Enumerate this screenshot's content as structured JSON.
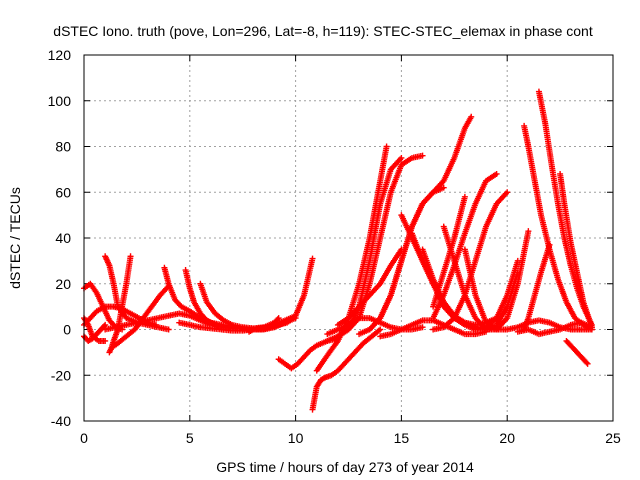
{
  "chart_data": {
    "type": "scatter",
    "title": "dSTEC Iono. truth (pove, Lon=296, Lat=-8, h=119): STEC-STEC_elemax in phase cont",
    "xlabel": "GPS time / hours of day 273 of year 2014",
    "ylabel": "dSTEC  / TECUs",
    "xlim": [
      0,
      25
    ],
    "ylim": [
      -40,
      120
    ],
    "xticks": [
      0,
      5,
      10,
      15,
      20,
      25
    ],
    "yticks": [
      -40,
      -20,
      0,
      20,
      40,
      60,
      80,
      100,
      120
    ],
    "grid": true,
    "marker": "plus",
    "color": "#ff0000",
    "series": [
      {
        "x": [
          0.0,
          0.3,
          0.6,
          0.9,
          1.2,
          1.5,
          1.8
        ],
        "y": [
          18,
          20,
          16,
          10,
          4,
          1,
          0
        ]
      },
      {
        "x": [
          0.0,
          0.3,
          0.6,
          1.0,
          1.4,
          1.8,
          2.2,
          2.6,
          3.0,
          3.4
        ],
        "y": [
          2,
          5,
          8,
          10,
          10,
          9,
          7,
          5,
          3,
          2
        ]
      },
      {
        "x": [
          0.0,
          0.2,
          0.4,
          0.7,
          1.0
        ],
        "y": [
          5,
          2,
          -3,
          -5,
          -5
        ]
      },
      {
        "x": [
          0.0,
          0.2,
          0.4,
          0.6,
          0.8,
          1.0
        ],
        "y": [
          -3,
          -5,
          -4,
          -2,
          0,
          2
        ]
      },
      {
        "x": [
          1.0,
          1.2,
          1.4,
          1.6,
          2.0,
          2.5,
          3.0,
          3.5,
          4.0
        ],
        "y": [
          32,
          28,
          20,
          10,
          5,
          3,
          2,
          1,
          0
        ]
      },
      {
        "x": [
          1.2,
          1.3,
          1.4,
          1.6,
          1.8,
          2.0,
          2.2
        ],
        "y": [
          -10,
          -8,
          -5,
          0,
          10,
          20,
          32
        ]
      },
      {
        "x": [
          1.3,
          1.6,
          2.0,
          2.4,
          2.8,
          3.2,
          3.6,
          4.0
        ],
        "y": [
          -8,
          -6,
          -3,
          0,
          5,
          10,
          15,
          19
        ]
      },
      {
        "x": [
          1.0,
          1.5,
          2.0,
          2.5,
          3.0,
          3.5,
          4.0,
          4.5,
          5.0,
          5.5,
          6.0
        ],
        "y": [
          0,
          1,
          2,
          3,
          4,
          5,
          6,
          7,
          6,
          4,
          2
        ]
      },
      {
        "x": [
          3.8,
          4.0,
          4.3,
          4.6,
          5.0,
          5.5,
          6.0,
          6.5,
          7.0,
          7.5,
          8.0
        ],
        "y": [
          27,
          20,
          13,
          10,
          8,
          5,
          3,
          2,
          1,
          0.5,
          0
        ]
      },
      {
        "x": [
          4.8,
          5.0,
          5.2,
          5.5,
          5.8,
          6.2,
          6.6,
          7.0,
          7.5,
          8.0
        ],
        "y": [
          26,
          18,
          12,
          7,
          4,
          2,
          1,
          0.5,
          0.2,
          0
        ]
      },
      {
        "x": [
          5.5,
          5.8,
          6.2,
          6.6,
          7.0,
          7.5,
          8.0,
          8.5,
          9.0,
          9.2
        ],
        "y": [
          20,
          12,
          7,
          4,
          2,
          1,
          0.5,
          1,
          3,
          5
        ]
      },
      {
        "x": [
          4.5,
          5.0,
          5.5,
          6.0,
          6.5,
          7.0,
          7.5,
          8.0,
          8.5,
          9.0,
          9.5,
          10.0
        ],
        "y": [
          3,
          2,
          1,
          0.5,
          0,
          -0.5,
          -0.5,
          0,
          0,
          1,
          3,
          5
        ]
      },
      {
        "x": [
          7.8,
          8.0,
          8.3,
          8.6,
          9.0,
          9.5,
          10.0
        ],
        "y": [
          -1,
          0,
          0.5,
          1,
          2,
          4,
          6
        ]
      },
      {
        "x": [
          8.0,
          8.4,
          8.8,
          9.2,
          9.6,
          10.0,
          10.4,
          10.8
        ],
        "y": [
          0,
          0,
          1,
          2,
          3,
          6,
          15,
          31
        ]
      },
      {
        "x": [
          9.2,
          9.5,
          9.8,
          10.1,
          10.4,
          10.7,
          11.0,
          11.5,
          12.0
        ],
        "y": [
          -13,
          -15,
          -17,
          -15,
          -12,
          -9,
          -7,
          -5,
          -4
        ]
      },
      {
        "x": [
          10.8,
          10.9,
          11.0,
          11.2,
          11.4,
          11.7,
          12.0,
          12.4,
          12.8,
          13.2,
          13.6,
          14.0
        ],
        "y": [
          -35,
          -30,
          -25,
          -22,
          -21,
          -20,
          -18,
          -14,
          -10,
          -6,
          -3,
          0
        ]
      },
      {
        "x": [
          11.0,
          11.3,
          11.6,
          12.0,
          12.5,
          13.0,
          13.5,
          14.0,
          14.3
        ],
        "y": [
          -18,
          -14,
          -10,
          -5,
          5,
          20,
          40,
          65,
          80
        ]
      },
      {
        "x": [
          11.5,
          12.0,
          12.5,
          13.0,
          13.5,
          14.0,
          14.5,
          15.0
        ],
        "y": [
          -5,
          -3,
          0,
          10,
          30,
          55,
          70,
          75
        ]
      },
      {
        "x": [
          12.0,
          12.5,
          13.0,
          13.5,
          14.0,
          14.5,
          15.0,
          15.5,
          16.0
        ],
        "y": [
          -3,
          0,
          5,
          20,
          40,
          60,
          72,
          75,
          76
        ]
      },
      {
        "x": [
          12.0,
          12.5,
          13.0,
          13.5,
          14.0,
          14.5,
          15.0
        ],
        "y": [
          2,
          5,
          10,
          15,
          20,
          28,
          35
        ]
      },
      {
        "x": [
          13.0,
          13.5,
          14.0,
          14.5,
          15.0,
          15.5,
          16.0,
          16.5,
          17.0
        ],
        "y": [
          -2,
          0,
          5,
          15,
          30,
          45,
          55,
          60,
          62
        ]
      },
      {
        "x": [
          13.5,
          14.0,
          14.5,
          15.0,
          15.5,
          16.0,
          16.5,
          17.0,
          17.5,
          18.0,
          18.3
        ],
        "y": [
          0,
          5,
          15,
          30,
          45,
          55,
          60,
          65,
          75,
          88,
          93
        ]
      },
      {
        "x": [
          11.5,
          12.0,
          12.5,
          13.0,
          13.5,
          14.0,
          14.5,
          15.0,
          15.5,
          16.0
        ],
        "y": [
          -2,
          0,
          2,
          5,
          5,
          3,
          1,
          0,
          0,
          1
        ]
      },
      {
        "x": [
          14.0,
          14.5,
          15.0,
          15.5,
          16.0,
          16.5,
          17.0,
          17.5,
          18.0,
          18.5,
          19.0
        ],
        "y": [
          -3,
          -2,
          0,
          2,
          4,
          4,
          2,
          0,
          -2,
          -2,
          -1
        ]
      },
      {
        "x": [
          15.0,
          15.5,
          16.0,
          16.5,
          17.0,
          17.5,
          18.0,
          18.5,
          19.0,
          19.5
        ],
        "y": [
          50,
          40,
          30,
          20,
          12,
          6,
          3,
          1,
          0,
          0
        ]
      },
      {
        "x": [
          15.5,
          16.0,
          16.5,
          17.0,
          17.5,
          18.0,
          18.5,
          19.0,
          19.5
        ],
        "y": [
          42,
          30,
          20,
          10,
          5,
          3,
          2,
          3,
          5
        ]
      },
      {
        "x": [
          16.0,
          16.5,
          17.0,
          17.5,
          18.0,
          18.5,
          19.0,
          19.5,
          20.0,
          20.5
        ],
        "y": [
          35,
          22,
          12,
          5,
          2,
          0,
          1,
          5,
          15,
          30
        ]
      },
      {
        "x": [
          16.5,
          17.0,
          17.5,
          18.0,
          18.5,
          19.0,
          19.5
        ],
        "y": [
          5,
          15,
          28,
          42,
          55,
          65,
          68
        ]
      },
      {
        "x": [
          16.5,
          17.0,
          17.5,
          18.0
        ],
        "y": [
          10,
          25,
          40,
          58
        ]
      },
      {
        "x": [
          16.5,
          17.0,
          17.5,
          18.0,
          18.5,
          19.0,
          19.5,
          20.0
        ],
        "y": [
          0,
          1,
          5,
          15,
          30,
          45,
          55,
          60
        ]
      },
      {
        "x": [
          17.0,
          17.5,
          18.0,
          18.5,
          19.0,
          19.5,
          20.0,
          20.5
        ],
        "y": [
          45,
          30,
          15,
          5,
          0,
          2,
          10,
          25
        ]
      },
      {
        "x": [
          18.0,
          18.5,
          19.0,
          19.5,
          20.0,
          20.5,
          21.0
        ],
        "y": [
          35,
          15,
          3,
          0,
          5,
          20,
          43
        ]
      },
      {
        "x": [
          19.0,
          19.5,
          20.0,
          20.5,
          21.0,
          21.5,
          22.0,
          22.5,
          23.0,
          23.5,
          24.0
        ],
        "y": [
          1,
          0,
          0,
          1,
          3,
          4,
          3,
          1,
          0,
          0,
          0
        ]
      },
      {
        "x": [
          20.5,
          21.0,
          21.5,
          22.0,
          22.5,
          23.0,
          23.5,
          24.0
        ],
        "y": [
          -1,
          0,
          -2,
          -1,
          0,
          2,
          3,
          1
        ]
      },
      {
        "x": [
          20.8,
          21.0,
          21.3,
          21.6,
          22.0,
          22.4,
          22.8,
          23.2,
          23.6,
          24.0
        ],
        "y": [
          89,
          80,
          65,
          50,
          35,
          22,
          12,
          5,
          2,
          0
        ]
      },
      {
        "x": [
          21.5,
          21.8,
          22.1,
          22.4,
          22.7,
          23.0,
          23.3,
          23.6,
          24.0
        ],
        "y": [
          104,
          90,
          72,
          55,
          40,
          28,
          18,
          10,
          2
        ]
      },
      {
        "x": [
          20.8,
          21.0,
          21.3,
          21.6,
          22.0
        ],
        "y": [
          0,
          5,
          15,
          25,
          37
        ]
      },
      {
        "x": [
          22.5,
          22.7,
          23.0,
          23.3,
          23.6,
          24.0
        ],
        "y": [
          68,
          55,
          38,
          25,
          12,
          1
        ]
      },
      {
        "x": [
          22.8,
          23.0,
          23.2,
          23.4,
          23.6,
          23.8
        ],
        "y": [
          -5,
          -7,
          -9,
          -11,
          -13,
          -15
        ]
      }
    ]
  }
}
